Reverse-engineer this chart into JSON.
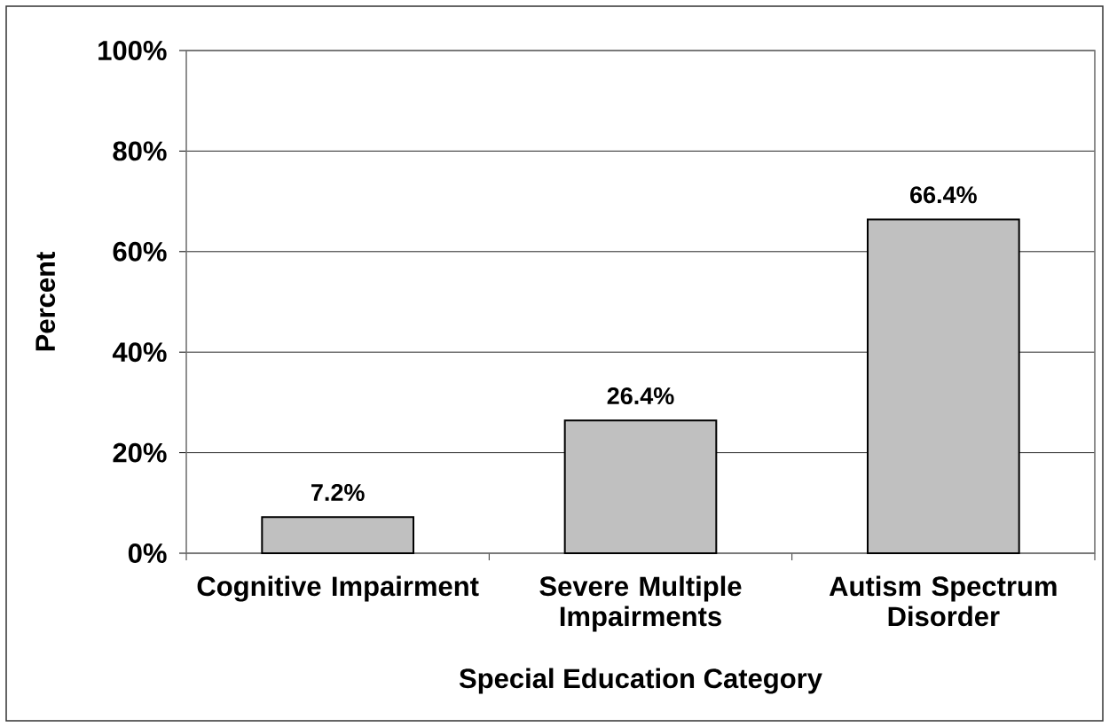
{
  "chart_data": {
    "type": "bar",
    "xlabel": "Special Education Category",
    "ylabel": "Percent",
    "categories": [
      "Cognitive Impairment",
      "Severe Multiple Impairments",
      "Autism Spectrum Disorder"
    ],
    "values": [
      7.2,
      26.4,
      66.4
    ],
    "value_labels": [
      "7.2%",
      "26.4%",
      "66.4%"
    ],
    "color": "#c0c0c0",
    "ylim": [
      0,
      100
    ],
    "yticks": [
      {
        "value": 0,
        "label": "0%"
      },
      {
        "value": 20,
        "label": "20%"
      },
      {
        "value": 40,
        "label": "40%"
      },
      {
        "value": 60,
        "label": "60%"
      },
      {
        "value": 80,
        "label": "80%"
      },
      {
        "value": 100,
        "label": "100%"
      }
    ],
    "grid": "y"
  }
}
